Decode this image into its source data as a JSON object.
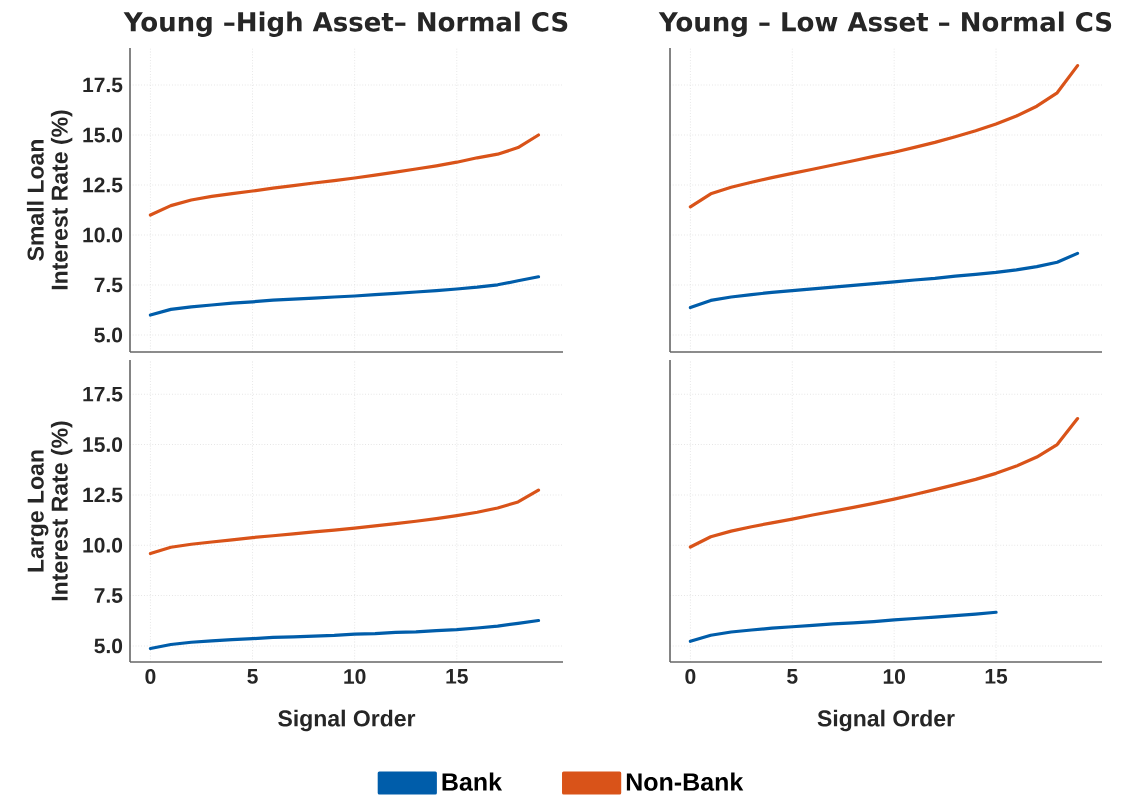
{
  "chart_data": [
    {
      "type": "line",
      "title": "Young –High Asset– Normal CS",
      "ylabel": "Small Loan Interest Rate (%)",
      "x": [
        0,
        1,
        2,
        3,
        4,
        5,
        6,
        7,
        8,
        9,
        10,
        11,
        12,
        13,
        14,
        15,
        16,
        17,
        18,
        19
      ],
      "series": [
        {
          "color": "#005daa",
          "values": [
            6.0,
            6.28,
            6.41,
            6.5,
            6.59,
            6.66,
            6.74,
            6.79,
            6.84,
            6.9,
            6.95,
            7.02,
            7.08,
            7.15,
            7.22,
            7.3,
            7.39,
            7.51,
            7.71,
            7.91
          ]
        },
        {
          "color": "#d95319",
          "values": [
            11.0,
            11.47,
            11.75,
            11.93,
            12.07,
            12.2,
            12.34,
            12.47,
            12.6,
            12.72,
            12.85,
            12.99,
            13.14,
            13.3,
            13.46,
            13.64,
            13.86,
            14.04,
            14.37,
            15.0
          ]
        }
      ],
      "xlim": [
        -1,
        20.2
      ],
      "ylim": [
        4.15,
        19.35
      ],
      "xticks": [
        0,
        5,
        10,
        15
      ],
      "yticks": [
        {
          "value": 5,
          "label": "5.0"
        },
        7.5,
        {
          "value": 10,
          "label": "10.0"
        },
        12.5,
        {
          "value": 15,
          "label": "15.0"
        },
        17.5
      ],
      "grid": true,
      "tick_labels": "y"
    },
    {
      "type": "line",
      "title": "Young – Low Asset – Normal CS",
      "x": [
        0,
        1,
        2,
        3,
        4,
        5,
        6,
        7,
        8,
        9,
        10,
        11,
        12,
        13,
        14,
        15,
        16,
        17,
        18,
        19
      ],
      "series": [
        {
          "color": "#005daa",
          "values": [
            6.37,
            6.73,
            6.9,
            7.02,
            7.13,
            7.22,
            7.31,
            7.39,
            7.48,
            7.57,
            7.66,
            7.75,
            7.83,
            7.94,
            8.03,
            8.13,
            8.26,
            8.42,
            8.64,
            9.08
          ]
        },
        {
          "color": "#d95319",
          "values": [
            11.41,
            12.06,
            12.39,
            12.64,
            12.87,
            13.08,
            13.29,
            13.5,
            13.71,
            13.93,
            14.14,
            14.38,
            14.63,
            14.91,
            15.21,
            15.55,
            15.95,
            16.44,
            17.11,
            18.47
          ]
        }
      ],
      "xlim": [
        -1,
        20.2
      ],
      "ylim": [
        4.15,
        19.35
      ],
      "xticks": [
        0,
        5,
        10,
        15
      ],
      "yticks": [
        5,
        7.5,
        10,
        12.5,
        15,
        17.5
      ],
      "grid": true,
      "tick_labels": false
    },
    {
      "type": "line",
      "xlabel": "Signal Order",
      "ylabel": "Large Loan Interest Rate (%)",
      "x": [
        0,
        1,
        2,
        3,
        4,
        5,
        6,
        7,
        8,
        9,
        10,
        11,
        12,
        13,
        14,
        15,
        16,
        17,
        18,
        19
      ],
      "series": [
        {
          "name": "Bank",
          "color": "#005daa",
          "values": [
            4.87,
            5.07,
            5.18,
            5.25,
            5.31,
            5.36,
            5.42,
            5.45,
            5.49,
            5.52,
            5.58,
            5.61,
            5.67,
            5.7,
            5.76,
            5.81,
            5.89,
            5.98,
            6.12,
            6.26
          ]
        },
        {
          "name": "Non-Bank",
          "color": "#d95319",
          "values": [
            9.59,
            9.9,
            10.05,
            10.16,
            10.27,
            10.38,
            10.47,
            10.56,
            10.66,
            10.75,
            10.85,
            10.96,
            11.07,
            11.19,
            11.32,
            11.47,
            11.64,
            11.85,
            12.15,
            12.74
          ]
        }
      ],
      "xlim": [
        -1,
        20.2
      ],
      "ylim": [
        4.2,
        19.2
      ],
      "xticks": [
        0,
        5,
        10,
        15
      ],
      "yticks": [
        {
          "value": 5,
          "label": "5.0"
        },
        7.5,
        {
          "value": 10,
          "label": "10.0"
        },
        12.5,
        {
          "value": 15,
          "label": "15.0"
        },
        17.5
      ],
      "grid": true,
      "legend": "bottom"
    },
    {
      "type": "line",
      "xlabel": "Signal Order",
      "x": [
        0,
        1,
        2,
        3,
        4,
        5,
        6,
        7,
        8,
        9,
        10,
        11,
        12,
        13,
        14,
        15,
        16,
        17,
        18,
        19
      ],
      "series": [
        {
          "color": "#005daa",
          "values": [
            5.23,
            5.53,
            5.69,
            5.79,
            5.88,
            5.95,
            6.02,
            6.09,
            6.14,
            6.21,
            6.29,
            6.36,
            6.43,
            6.5,
            6.58,
            6.67,
            null,
            null,
            null,
            null
          ]
        },
        {
          "color": "#d95319",
          "values": [
            9.91,
            10.42,
            10.7,
            10.92,
            11.11,
            11.3,
            11.5,
            11.69,
            11.88,
            12.08,
            12.29,
            12.52,
            12.76,
            13.01,
            13.27,
            13.57,
            13.93,
            14.38,
            15.0,
            16.29
          ]
        }
      ],
      "xlim": [
        -1,
        20.2
      ],
      "ylim": [
        4.2,
        19.2
      ],
      "xticks": [
        0,
        5,
        10,
        15
      ],
      "yticks": [
        5,
        7.5,
        10,
        12.5,
        15,
        17.5
      ],
      "grid": true,
      "tick_labels": "x"
    }
  ]
}
